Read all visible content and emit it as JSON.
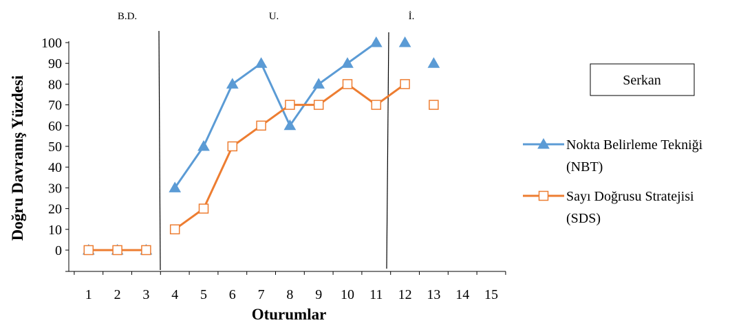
{
  "chart_data": {
    "type": "line",
    "phases": [
      "B.D.",
      "U.",
      "İ."
    ],
    "participant": "Serkan",
    "xlabel": "Oturumlar",
    "ylabel": "Doğru Davranış Yüzdesi",
    "x": [
      1,
      2,
      3,
      4,
      5,
      6,
      7,
      8,
      9,
      10,
      11,
      12,
      13,
      14,
      15
    ],
    "ylim": [
      -10,
      100
    ],
    "yticks": [
      0,
      10,
      20,
      30,
      40,
      50,
      60,
      70,
      80,
      90,
      100
    ],
    "phase_change_after_session": [
      3.5,
      11.5
    ],
    "series": [
      {
        "name": "Nokta Belirleme Tekniği (NBT)",
        "legend_lines": [
          "Nokta Belirleme Tekniği",
          "(NBT)"
        ],
        "color": "#5b9bd5",
        "marker": "triangle",
        "points": [
          [
            1,
            0
          ],
          [
            2,
            0
          ],
          [
            3,
            0
          ],
          [
            4,
            30
          ],
          [
            5,
            50
          ],
          [
            6,
            80
          ],
          [
            7,
            90
          ],
          [
            8,
            60
          ],
          [
            9,
            80
          ],
          [
            10,
            90
          ],
          [
            11,
            100
          ],
          [
            12,
            100
          ],
          [
            13,
            90
          ]
        ],
        "segments": [
          [
            1,
            2,
            3
          ],
          [
            4,
            5,
            6,
            7,
            8,
            9,
            10,
            11
          ],
          [
            12
          ]
        ]
      },
      {
        "name": "Sayı Doğrusu Stratejisi (SDS)",
        "legend_lines": [
          "Sayı Doğrusu Stratejisi",
          "(SDS)"
        ],
        "color": "#ed7d31",
        "marker": "square-open",
        "points": [
          [
            1,
            0
          ],
          [
            2,
            0
          ],
          [
            3,
            0
          ],
          [
            4,
            10
          ],
          [
            5,
            20
          ],
          [
            6,
            50
          ],
          [
            7,
            60
          ],
          [
            8,
            70
          ],
          [
            9,
            70
          ],
          [
            10,
            80
          ],
          [
            11,
            70
          ],
          [
            12,
            80
          ],
          [
            13,
            70
          ]
        ],
        "segments": [
          [
            1,
            2,
            3
          ],
          [
            4,
            5,
            6,
            7,
            8,
            9,
            10,
            11,
            12
          ]
        ]
      }
    ]
  }
}
